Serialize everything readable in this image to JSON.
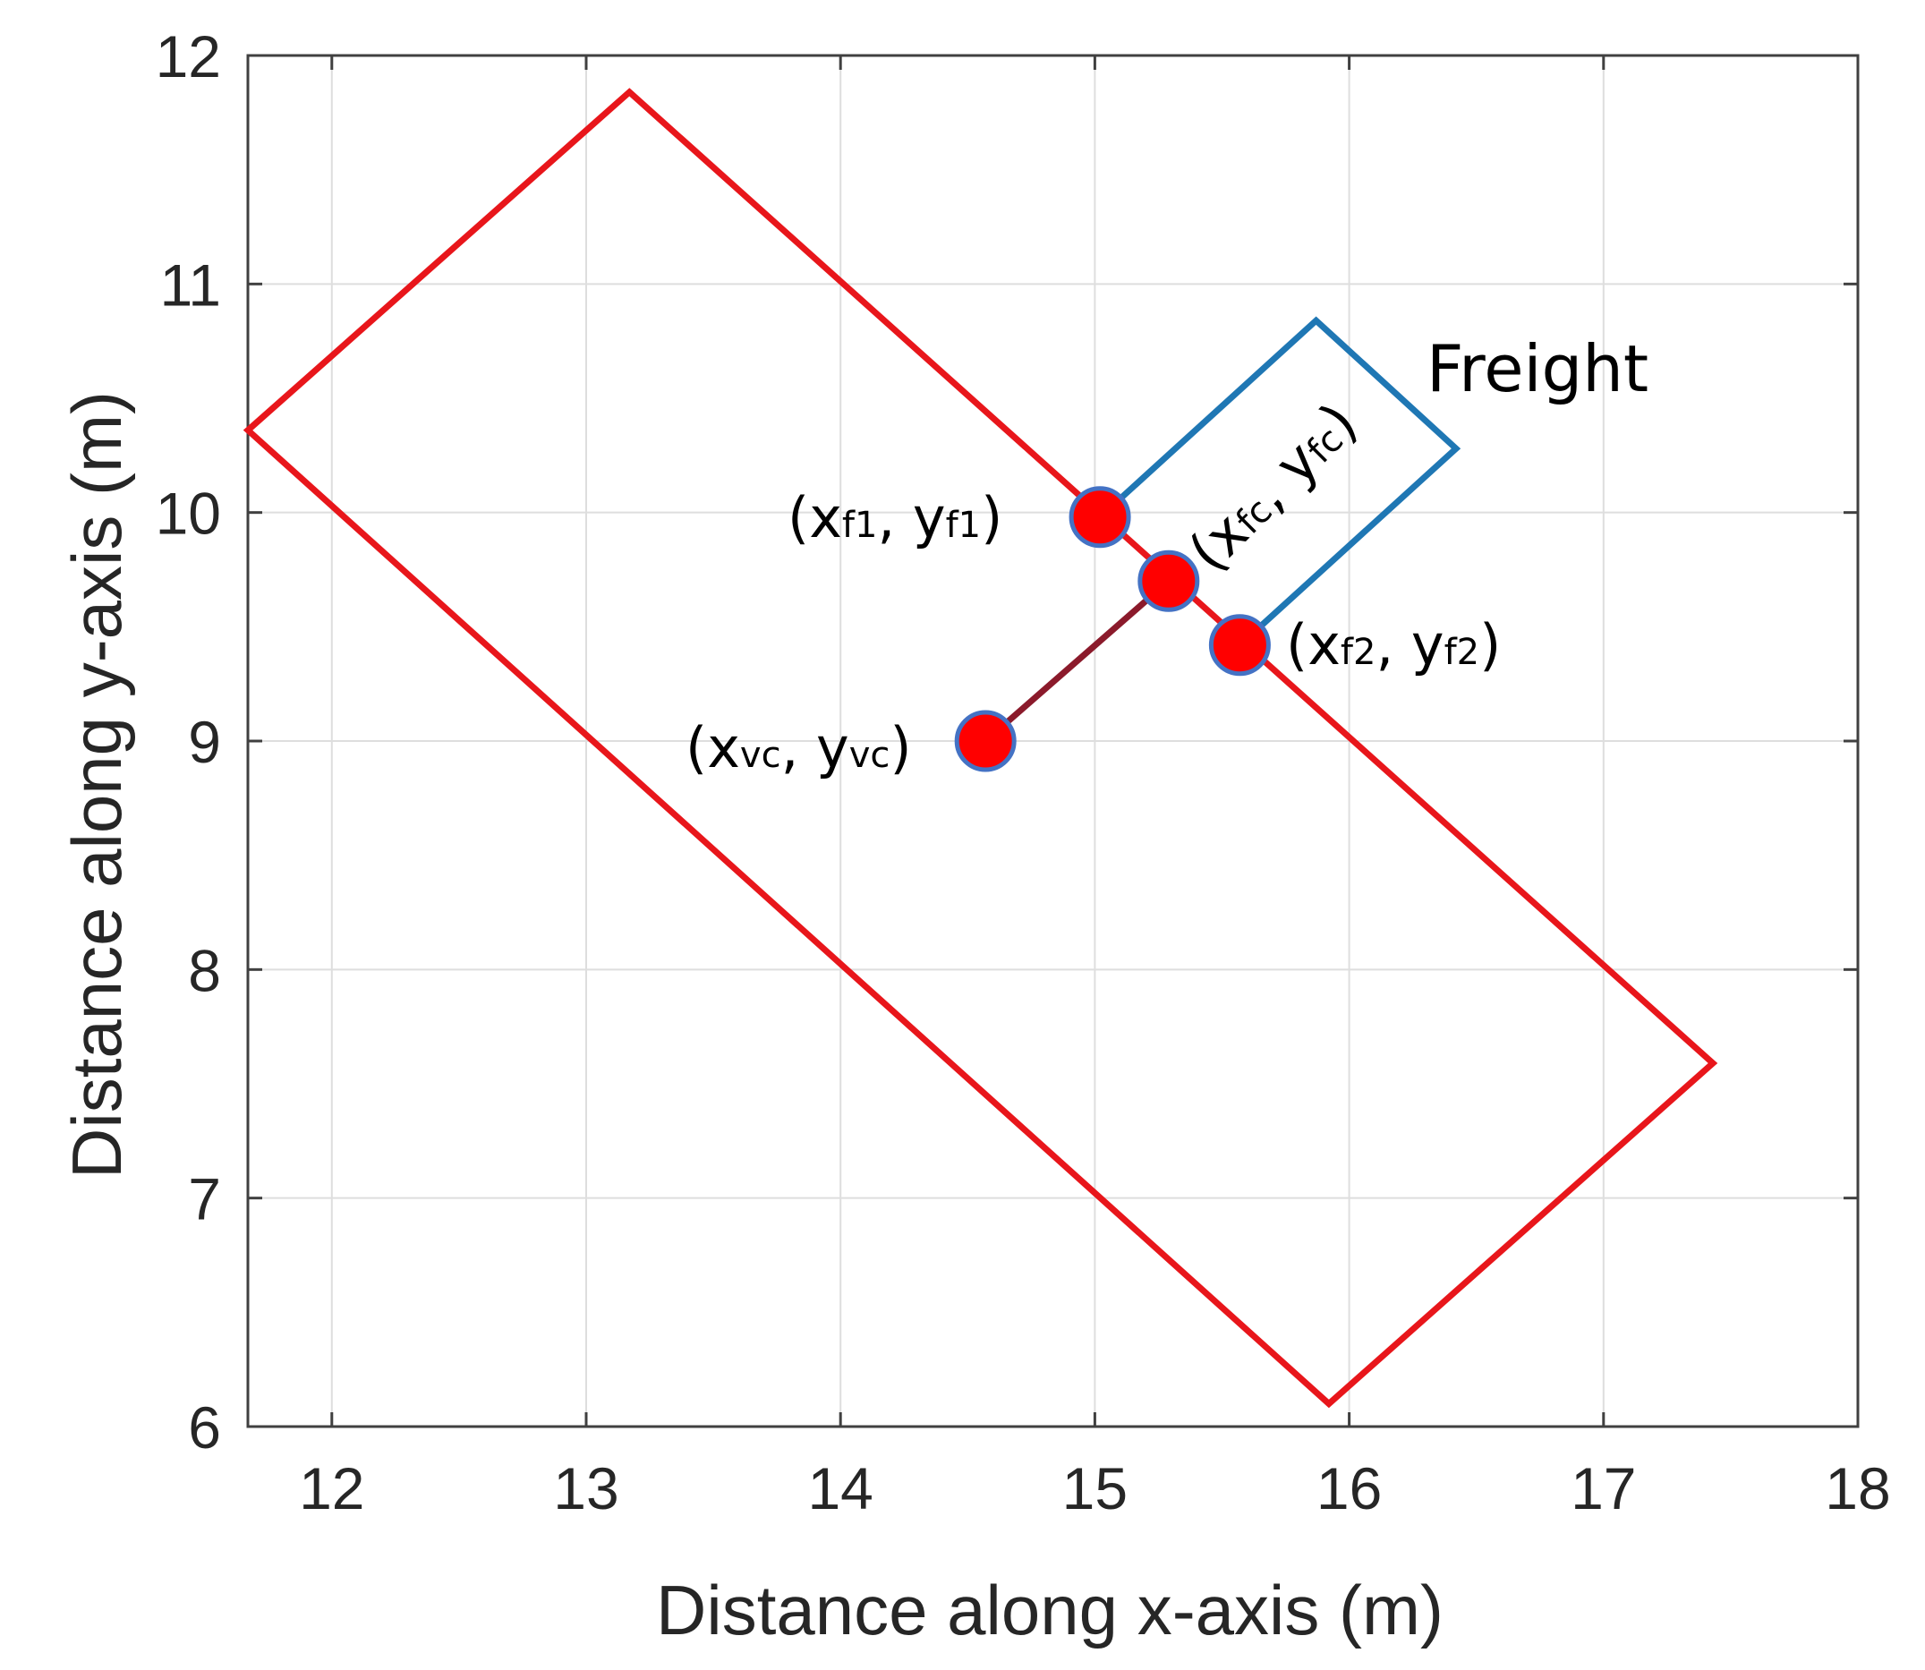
{
  "colors": {
    "vehicle": "#e8161b",
    "freight": "#1f77b4",
    "connector": "#8b1a2b",
    "point_fill": "#ff0000",
    "point_edge": "#4472c4",
    "grid": "#dedede",
    "axes": "#404040"
  },
  "chart_data": {
    "type": "line",
    "title": "",
    "xlabel": "Distance along x-axis (m)",
    "ylabel": "Distance along y-axis (m)",
    "xlim": [
      11.67,
      18
    ],
    "ylim": [
      6,
      12
    ],
    "xticks": [
      12,
      13,
      14,
      15,
      16,
      17,
      18
    ],
    "yticks": [
      6,
      7,
      8,
      9,
      10,
      11,
      12
    ],
    "grid": true,
    "series": [
      {
        "name": "vehicle",
        "closed": true,
        "x": [
          13.17,
          17.43,
          15.92,
          11.67
        ],
        "y": [
          11.84,
          7.59,
          6.1,
          10.36
        ]
      },
      {
        "name": "freight",
        "closed": false,
        "x": [
          15.02,
          15.87,
          16.42,
          15.57
        ],
        "y": [
          9.98,
          10.84,
          10.28,
          9.42
        ]
      },
      {
        "name": "connector",
        "closed": false,
        "x": [
          14.57,
          15.29
        ],
        "y": [
          9.0,
          9.7
        ]
      }
    ],
    "points": [
      {
        "id": "f1",
        "x": 15.02,
        "y": 9.98
      },
      {
        "id": "fc",
        "x": 15.29,
        "y": 9.7
      },
      {
        "id": "f2",
        "x": 15.57,
        "y": 9.42
      },
      {
        "id": "vc",
        "x": 14.57,
        "y": 9.0
      }
    ],
    "annotations": {
      "freight": "Freight",
      "f1": {
        "open": "(",
        "x": "x",
        "xs": "f1",
        "sep": ", ",
        "y": "y",
        "ys": "f1",
        "close": ")"
      },
      "fc": {
        "open": "(",
        "x": "x",
        "xs": "fc",
        "sep": ", ",
        "y": "y",
        "ys": "fc",
        "close": ")"
      },
      "f2": {
        "open": "(",
        "x": "x",
        "xs": "f2",
        "sep": ", ",
        "y": "y",
        "ys": "f2",
        "close": ")"
      },
      "vc": {
        "open": "(",
        "x": "x",
        "xs": "vc",
        "sep": ", ",
        "y": "y",
        "ys": "vc",
        "close": ")"
      }
    }
  }
}
